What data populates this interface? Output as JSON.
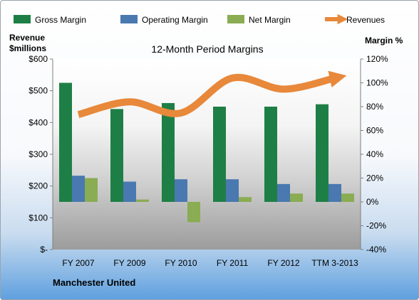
{
  "chart_data": {
    "type": "bar",
    "title": "12-Month Period Margins",
    "company": "Manchester United",
    "left_axis": {
      "label_line1": "Revenue",
      "label_line2": "$millions",
      "ticks": [
        "$-",
        "$100",
        "$200",
        "$300",
        "$400",
        "$500",
        "$600"
      ],
      "ylim": [
        0,
        600
      ]
    },
    "right_axis": {
      "label": "Margin %",
      "ticks": [
        "-40%",
        "-20%",
        "0%",
        "20%",
        "40%",
        "60%",
        "80%",
        "100%",
        "120%"
      ],
      "ylim": [
        -40,
        120
      ]
    },
    "categories": [
      "FY 2007",
      "FY 2009",
      "FY 2010",
      "FY 2011",
      "FY 2012",
      "TTM 3-2013"
    ],
    "series": [
      {
        "name": "Gross Margin",
        "color": "#1e7f46",
        "axis": "right",
        "values": [
          100,
          78,
          83,
          80,
          80,
          82
        ]
      },
      {
        "name": "Operating Margin",
        "color": "#4a78b0",
        "axis": "right",
        "values": [
          22,
          17,
          19,
          19,
          15,
          15
        ]
      },
      {
        "name": "Net Margin",
        "color": "#8aac52",
        "axis": "right",
        "values": [
          20,
          2,
          -17,
          4,
          7,
          7
        ]
      },
      {
        "name": "Revenues",
        "color": "#e8883a",
        "axis": "left",
        "type": "line",
        "values": [
          425,
          465,
          430,
          540,
          505,
          540
        ]
      }
    ],
    "grid": false,
    "legend_position": "top"
  }
}
